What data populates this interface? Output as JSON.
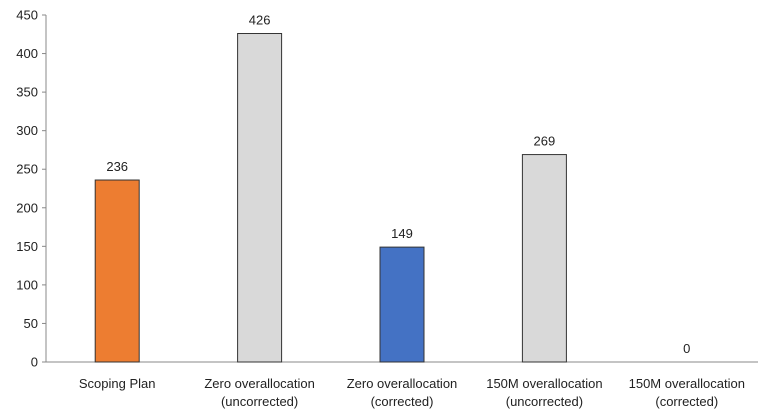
{
  "chart_data": {
    "type": "bar",
    "title": "",
    "xlabel": "",
    "ylabel": "",
    "ylim": [
      0,
      450
    ],
    "yticks": [
      0,
      50,
      100,
      150,
      200,
      250,
      300,
      350,
      400,
      450
    ],
    "grid": false,
    "legend": "none",
    "categories": [
      [
        "Scoping Plan"
      ],
      [
        "Zero overallocation",
        "(uncorrected)"
      ],
      [
        "Zero overallocation",
        "(corrected)"
      ],
      [
        "150M overallocation",
        "(uncorrected)"
      ],
      [
        "150M overallocation",
        "(corrected)"
      ]
    ],
    "values": [
      236,
      426,
      149,
      269,
      0
    ],
    "data_labels": [
      "236",
      "426",
      "149",
      "269",
      "0"
    ],
    "colors": [
      "#ED7D31",
      "#D9D9D9",
      "#4472C4",
      "#D9D9D9",
      "#D9D9D9"
    ]
  }
}
